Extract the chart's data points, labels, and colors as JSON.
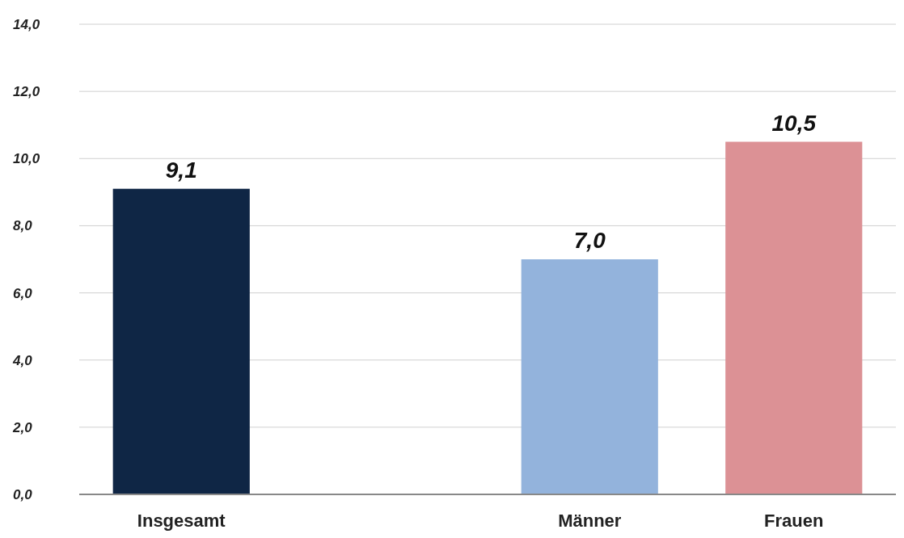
{
  "chart_data": {
    "type": "bar",
    "categories": [
      "Insgesamt",
      null,
      "Männer",
      "Frauen"
    ],
    "values": [
      9.1,
      null,
      7.0,
      10.5
    ],
    "colors": [
      "#0f2645",
      null,
      "#93b3dc",
      "#dc9195"
    ],
    "value_labels": [
      "9,1",
      null,
      "7,0",
      "10,5"
    ],
    "ylim": [
      0,
      14
    ],
    "yticks": [
      {
        "value": 0,
        "label": "0,0"
      },
      {
        "value": 2,
        "label": "2,0"
      },
      {
        "value": 4,
        "label": "4,0"
      },
      {
        "value": 6,
        "label": "6,0"
      },
      {
        "value": 8,
        "label": "8,0"
      },
      {
        "value": 10,
        "label": "10,0"
      },
      {
        "value": 12,
        "label": "12,0"
      },
      {
        "value": 14,
        "label": "14,0"
      }
    ],
    "grid": "y"
  }
}
